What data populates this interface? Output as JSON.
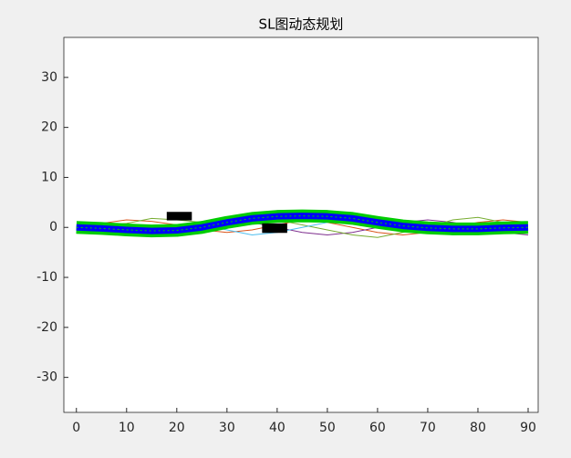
{
  "chart_data": {
    "type": "line",
    "title": "SL图动态规划",
    "x": [
      0,
      5,
      10,
      15,
      20,
      25,
      30,
      35,
      40,
      45,
      50,
      55,
      60,
      65,
      70,
      75,
      80,
      85,
      90
    ],
    "series": [
      {
        "color": "#d95319",
        "values": [
          0,
          0.8,
          1.5,
          1.2,
          0.5,
          -0.5,
          -1,
          -0.5,
          0.5,
          1.5,
          1,
          0,
          -1,
          -1.5,
          -1,
          0,
          1,
          1.5,
          1
        ]
      },
      {
        "color": "#7e2f8e",
        "values": [
          0,
          -0.8,
          -1.5,
          -1.8,
          -1,
          0,
          0.5,
          1,
          0,
          -1,
          -1.5,
          -1,
          0,
          1,
          1.5,
          1,
          0,
          -1,
          -1.5
        ]
      },
      {
        "color": "#77ac30",
        "values": [
          0,
          0.4,
          0.8,
          1.8,
          1.5,
          1,
          1.5,
          2,
          1.5,
          0.5,
          -0.5,
          -1.5,
          -2,
          -1,
          0,
          1.5,
          2,
          1,
          0.5
        ]
      },
      {
        "color": "#4dbeee",
        "values": [
          0,
          -0.4,
          -1,
          -0.5,
          0,
          0.5,
          -0.5,
          -1.5,
          -1,
          0,
          1,
          1.5,
          1.2,
          0.5,
          -0.5,
          -1.5,
          -1.2,
          -0.5,
          -1
        ]
      },
      {
        "color": "#0000ff",
        "band_color": "#00cc00",
        "values": [
          0,
          -0.2,
          -0.5,
          -0.7,
          -0.6,
          0,
          1,
          1.8,
          2.2,
          2.3,
          2.2,
          1.8,
          1,
          0.3,
          -0.1,
          -0.3,
          -0.3,
          -0.1,
          0
        ]
      }
    ],
    "obstacles": [
      {
        "x": [
          18,
          23
        ],
        "y": [
          1.4,
          3.1
        ]
      },
      {
        "x": [
          37,
          42
        ],
        "y": [
          -1.1,
          0.8
        ]
      }
    ],
    "obstacle_color": "#000000",
    "xlim": [
      -2.5,
      92
    ],
    "ylim": [
      -37,
      38
    ],
    "xticks": [
      0,
      10,
      20,
      30,
      40,
      50,
      60,
      70,
      80,
      90
    ],
    "yticks": [
      -30,
      -20,
      -10,
      0,
      10,
      20,
      30
    ]
  }
}
